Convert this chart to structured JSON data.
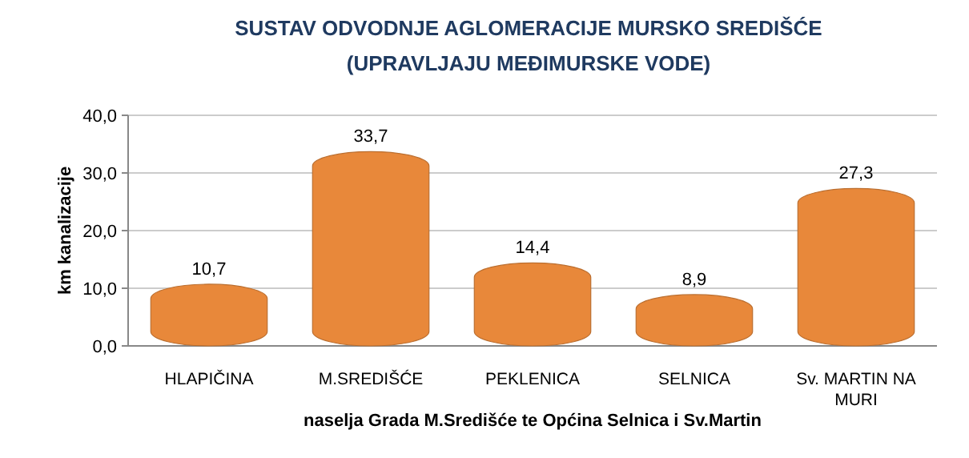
{
  "chart_data": {
    "type": "bar",
    "title": "SUSTAV ODVODNJE AGLOMERACIJE MURSKO SREDIŠĆE",
    "subtitle": "(UPRAVLJAJU MEĐIMURSKE VODE)",
    "categories": [
      "HLAPIČINA",
      "M.SREDIŠĆE",
      "PEKLENICA",
      "SELNICA",
      "Sv. MARTIN NA MURI"
    ],
    "values": [
      10.7,
      33.7,
      14.4,
      8.9,
      27.3
    ],
    "color": "#e8883a",
    "ylim": [
      0,
      40
    ],
    "yticks": [
      {
        "value": 0,
        "label": "0,0"
      },
      {
        "value": 10,
        "label": "10,0"
      },
      {
        "value": 20,
        "label": "20,0"
      },
      {
        "value": 30,
        "label": "30,0"
      },
      {
        "value": 40,
        "label": "40,0"
      }
    ],
    "value_labels": [
      "10,7",
      "33,7",
      "14,4",
      "8,9",
      "27,3"
    ],
    "ylabel": "km kanalizacije",
    "xlabel": "naselja Grada M.Središće te Općina Selnica i Sv.Martin",
    "grid": "y"
  }
}
